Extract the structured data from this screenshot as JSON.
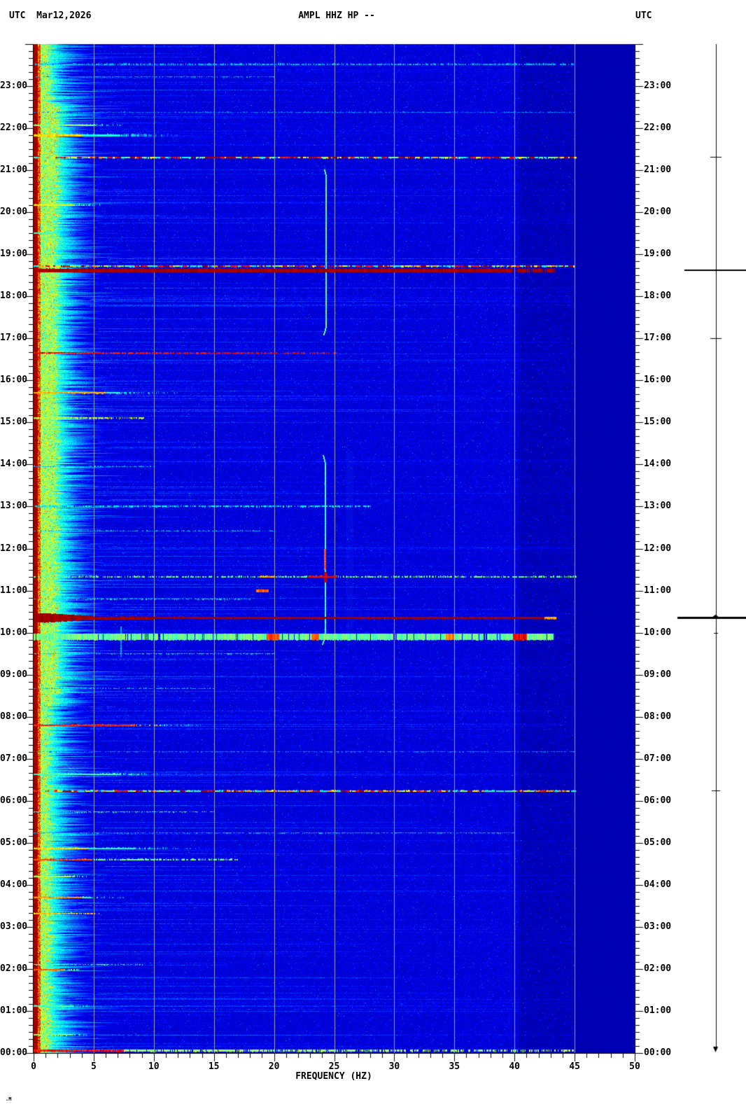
{
  "header": {
    "left_label": "UTC",
    "date": "Mar12,2026",
    "title": "AMPL HHZ HP --",
    "right_label": "UTC"
  },
  "watermark": ".M",
  "axes": {
    "x": {
      "title": "FREQUENCY (HZ)",
      "min_hz": 0,
      "max_hz": 50,
      "major_tick_hz": 5,
      "minor_tick_hz": 1,
      "tick_values": [
        0,
        5,
        10,
        15,
        20,
        25,
        30,
        35,
        40,
        45,
        50
      ],
      "tick_labels": [
        "0",
        "5",
        "10",
        "15",
        "20",
        "25",
        "30",
        "35",
        "40",
        "45",
        "50"
      ]
    },
    "y": {
      "unit": "UTC",
      "direction": "time increases upward, 00:00 at bottom",
      "major_tick_minutes": 60,
      "minor_tick_minutes": 10,
      "labels": [
        "23:00",
        "22:00",
        "21:00",
        "20:00",
        "19:00",
        "18:00",
        "17:00",
        "16:00",
        "15:00",
        "14:00",
        "13:00",
        "12:00",
        "11:00",
        "10:00",
        "09:00",
        "08:00",
        "07:00",
        "06:00",
        "05:00",
        "04:00",
        "03:00",
        "02:00",
        "01:00",
        "00:00"
      ]
    }
  },
  "chart_data": {
    "type": "heatmap",
    "subtype": "seismic-spectrogram",
    "palette": "jet",
    "x_range_hz": [
      0,
      50
    ],
    "y_range_hours": [
      0,
      24
    ],
    "gridlines_hz": [
      5,
      10,
      15,
      20,
      25,
      30,
      35,
      40,
      45
    ],
    "colors": {
      "grid": "#A0A0A0",
      "axis": "#000000",
      "text": "#000000",
      "page_bg": "#FFFFFF",
      "field_blue": "#0000CD",
      "quiet_blue": "#0000B0",
      "hot_red": "#8B0000"
    },
    "background": {
      "field_value": 0.085,
      "quiet_band_start_hz": 45.05,
      "quiet_value": 0.052,
      "dark_textured_band_hz": [
        40.3,
        45.05
      ],
      "low_freq_hot_strip_hz": [
        0,
        0.32
      ],
      "noise_band_day_hz": 2.2,
      "noise_band_night_hz": 1.3,
      "day_hours": [
        8.3,
        22.6
      ],
      "streak_row_probability": 0.33
    },
    "events": [
      {
        "t": 23.52,
        "f1": 45,
        "v": 0.3,
        "th": 2,
        "style": "dash"
      },
      {
        "t": 23.22,
        "f1": 20,
        "v": 0.28,
        "th": 1,
        "style": "dash"
      },
      {
        "t": 22.38,
        "f1": 45,
        "v": 0.26,
        "th": 1,
        "style": "dash"
      },
      {
        "t": 22.07,
        "f1": 8,
        "v": 0.52,
        "th": 2,
        "style": "fade"
      },
      {
        "t": 21.83,
        "f1": 12,
        "v": 0.66,
        "th": 3,
        "style": "fade",
        "hot_f1": 4
      },
      {
        "t": 21.3,
        "f1": 47,
        "v": 0.8,
        "th": 2,
        "style": "multidash"
      },
      {
        "t": 20.17,
        "f1": 5.5,
        "v": 0.62,
        "th": 2,
        "style": "fade"
      },
      {
        "t": 19.5,
        "f1": 3,
        "v": 0.45,
        "th": 2,
        "style": "fade"
      },
      {
        "t": 18.72,
        "f1": 45,
        "v": 0.7,
        "th": 2,
        "style": "multidash"
      },
      {
        "t": 18.62,
        "f1": 43.3,
        "v": 0.96,
        "th": 5,
        "style": "solid"
      },
      {
        "t": 16.65,
        "f1": 25.5,
        "v": 0.88,
        "th": 2,
        "style": "fadedash"
      },
      {
        "t": 15.7,
        "f1": 12,
        "v": 0.7,
        "th": 2,
        "style": "fade",
        "hot_f1": 6
      },
      {
        "t": 15.1,
        "f1": 9.5,
        "v": 0.58,
        "th": 2,
        "style": "fadedash"
      },
      {
        "t": 13.95,
        "f1": 10,
        "v": 0.3,
        "th": 1,
        "style": "dash"
      },
      {
        "t": 13.0,
        "f1": 28,
        "v": 0.36,
        "th": 2,
        "style": "dash"
      },
      {
        "t": 12.42,
        "f1": 20,
        "v": 0.3,
        "th": 1,
        "style": "dash"
      },
      {
        "t": 11.33,
        "f1": 47,
        "v": 0.48,
        "th": 2,
        "style": "dash",
        "hot": [
          {
            "f0": 22.8,
            "f1": 25.2,
            "v": 0.88
          },
          {
            "f0": 18.8,
            "f1": 20.0,
            "v": 0.7
          }
        ]
      },
      {
        "t": 11.0,
        "f0": 18.5,
        "f1": 19.5,
        "v": 0.78,
        "th": 4,
        "style": "blob"
      },
      {
        "t": 10.8,
        "f1": 18,
        "v": 0.36,
        "th": 1,
        "style": "dash"
      },
      {
        "t": 10.35,
        "f1": 43.5,
        "v": 0.97,
        "th": 3,
        "style": "wedge",
        "hot": [
          {
            "f0": 42.5,
            "f1": 43.4,
            "v": 0.72
          }
        ]
      },
      {
        "t": 9.9,
        "f1": 43.2,
        "v": 0.48,
        "th": 9,
        "style": "band",
        "hot": [
          {
            "f0": 19.4,
            "f1": 20.4,
            "v": 0.8
          },
          {
            "f0": 23.1,
            "f1": 23.7,
            "v": 0.78
          },
          {
            "f0": 34.3,
            "f1": 34.9,
            "v": 0.74
          },
          {
            "f0": 39.9,
            "f1": 41.0,
            "v": 0.88
          }
        ]
      },
      {
        "t": 9.5,
        "f1": 20,
        "v": 0.34,
        "th": 1,
        "style": "dash"
      },
      {
        "t": 8.67,
        "f1": 15,
        "v": 0.3,
        "th": 1,
        "style": "dash"
      },
      {
        "t": 7.8,
        "f1": 14,
        "v": 0.84,
        "th": 2,
        "style": "fade",
        "hot_f1": 10.5
      },
      {
        "t": 7.17,
        "f1": 45,
        "v": 0.25,
        "th": 1,
        "style": "dash"
      },
      {
        "t": 6.63,
        "f1": 12,
        "v": 0.44,
        "th": 2,
        "style": "fade"
      },
      {
        "t": 6.23,
        "f1": 46,
        "v": 0.78,
        "th": 2,
        "style": "multidash"
      },
      {
        "t": 5.73,
        "f1": 15,
        "v": 0.4,
        "th": 1,
        "style": "fadedash"
      },
      {
        "t": 5.23,
        "f1": 40,
        "v": 0.3,
        "th": 1,
        "style": "dash"
      },
      {
        "t": 4.87,
        "f1": 14,
        "v": 0.66,
        "th": 2,
        "style": "fade",
        "hot_f1": 4.5
      },
      {
        "t": 4.6,
        "f1": 17,
        "v": 0.8,
        "th": 2,
        "style": "fadedash",
        "hot_f1": 5
      },
      {
        "t": 4.2,
        "f1": 5,
        "v": 0.56,
        "th": 2,
        "style": "fade"
      },
      {
        "t": 3.7,
        "f1": 8,
        "v": 0.72,
        "th": 2,
        "style": "fade",
        "hot_f1": 4
      },
      {
        "t": 3.32,
        "f1": 5.5,
        "v": 0.68,
        "th": 2,
        "style": "fadedash"
      },
      {
        "t": 2.1,
        "f1": 9,
        "v": 0.44,
        "th": 1,
        "style": "fadedash"
      },
      {
        "t": 1.98,
        "f1": 4,
        "v": 0.78,
        "th": 2,
        "style": "fade"
      },
      {
        "t": 1.12,
        "f1": 5.5,
        "v": 0.44,
        "th": 2,
        "style": "fade"
      },
      {
        "t": 0.43,
        "f1": 5,
        "v": 0.52,
        "th": 2,
        "style": "fade"
      },
      {
        "t": 0.05,
        "f1": 45,
        "v": 0.86,
        "th": 3,
        "style": "fadedash",
        "hot_f1": 7.5
      }
    ],
    "tonal_lines": [
      {
        "f": 24.35,
        "t0": 17.08,
        "t1": 21.02,
        "v": 0.48,
        "w": 2,
        "hook": true
      },
      {
        "f": 24.25,
        "t0": 9.72,
        "t1": 14.22,
        "v": 0.45,
        "w": 2,
        "hook": true,
        "hot": [
          {
            "t0": 11.5,
            "t1": 12.0,
            "v": 0.8,
            "w": 3
          },
          {
            "t0": 11.2,
            "t1": 11.45,
            "v": 0.92,
            "w": 4
          }
        ]
      },
      {
        "f": 7.25,
        "t0": 9.45,
        "t1": 10.15,
        "v": 0.28,
        "w": 2
      },
      {
        "f": 26.3,
        "t0": 9.7,
        "t1": 14.3,
        "v": 0.13,
        "w": 10,
        "style": "band"
      }
    ],
    "amplitude_trace": {
      "color": "#000000",
      "arrow": "down",
      "blips": [
        {
          "t": 21.3,
          "hw": 8,
          "th": 1
        },
        {
          "t": 18.62,
          "hw": 45,
          "th": 2
        },
        {
          "t": 16.98,
          "hw": 8,
          "th": 1
        },
        {
          "t": 10.35,
          "hw": 55,
          "th": 3,
          "bump": true
        },
        {
          "t": 9.98,
          "hw": 3,
          "th": 1
        },
        {
          "t": 6.23,
          "hw": 6,
          "th": 1
        }
      ]
    }
  }
}
